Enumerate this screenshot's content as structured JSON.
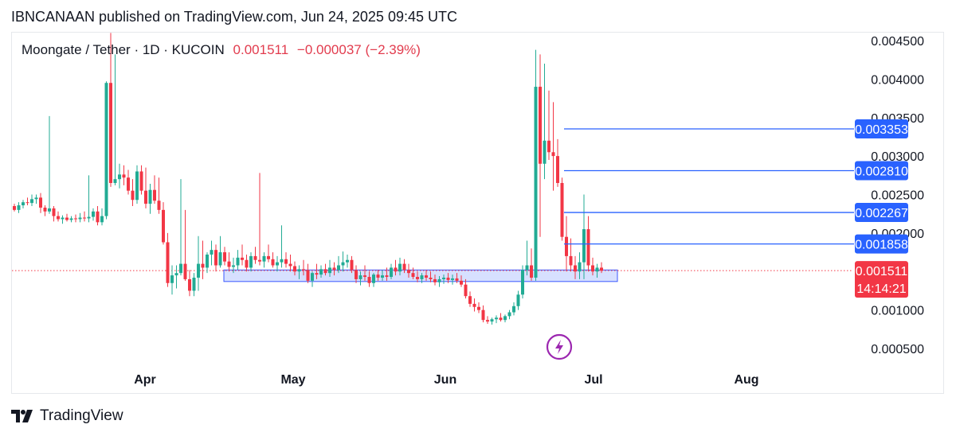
{
  "header": {
    "text": "IBNCANAAN published on TradingView.com, Jun 24, 2025 09:45 UTC"
  },
  "legend": {
    "symbol": "Moongate / Tether · 1D · KUCOIN",
    "price": "0.001511",
    "change": "−0.000037 (−2.39%)"
  },
  "colors": {
    "up": "#22ab94",
    "down": "#f23645",
    "level_line": "#2962ff",
    "badge_blue": "#2962ff",
    "badge_red": "#f23645",
    "zone_fill": "#c9d6ff",
    "zone_border": "#3b57ff",
    "lightning_purple": "#9c27b0"
  },
  "icons": {
    "lightning": "lightning-icon",
    "logo": "tradingview-logo-icon"
  },
  "footer": {
    "brand": "TradingView"
  },
  "chart_data": {
    "type": "candlestick",
    "title": "Moongate / Tether · 1D · KUCOIN",
    "y_axis": {
      "ticks": [
        "0.004500",
        "0.004000",
        "0.003500",
        "0.003000",
        "0.002500",
        "0.002000",
        "0.001000",
        "0.000500"
      ],
      "tick_values": [
        0.0045,
        0.004,
        0.0035,
        0.003,
        0.0025,
        0.002,
        0.001,
        0.0005
      ],
      "range": [
        0.0003,
        0.0047
      ]
    },
    "x_axis": {
      "ticks": [
        "Apr",
        "May",
        "Jun",
        "Jul",
        "Aug"
      ]
    },
    "horizontal_levels": [
      {
        "label": "0.003353",
        "value": 0.003353
      },
      {
        "label": "0.002810",
        "value": 0.00281
      },
      {
        "label": "0.002267",
        "value": 0.002267
      },
      {
        "label": "0.001858",
        "value": 0.001858
      }
    ],
    "current_price": {
      "label": "0.001511",
      "value": 0.001511,
      "countdown": "14:14:21"
    },
    "support_zone": {
      "low": 0.00137,
      "high": 0.00152
    },
    "candles": [
      [
        0.00235,
        0.00238,
        0.00228,
        0.0023
      ],
      [
        0.0023,
        0.0024,
        0.00226,
        0.00236
      ],
      [
        0.00236,
        0.00243,
        0.00232,
        0.0024
      ],
      [
        0.0024,
        0.00246,
        0.00236,
        0.00239
      ],
      [
        0.00239,
        0.0025,
        0.00235,
        0.00244
      ],
      [
        0.00244,
        0.0025,
        0.00238,
        0.00246
      ],
      [
        0.00246,
        0.00252,
        0.00226,
        0.00233
      ],
      [
        0.00233,
        0.00236,
        0.00222,
        0.00228
      ],
      [
        0.00228,
        0.00352,
        0.00225,
        0.00232
      ],
      [
        0.00232,
        0.00235,
        0.00215,
        0.00222
      ],
      [
        0.00222,
        0.00228,
        0.00215,
        0.00218
      ],
      [
        0.00218,
        0.00223,
        0.00212,
        0.0022
      ],
      [
        0.0022,
        0.00225,
        0.00215,
        0.00217
      ],
      [
        0.00217,
        0.00222,
        0.00214,
        0.00219
      ],
      [
        0.00219,
        0.00224,
        0.00214,
        0.00218
      ],
      [
        0.00218,
        0.00226,
        0.00214,
        0.0022
      ],
      [
        0.0022,
        0.00228,
        0.00215,
        0.00219
      ],
      [
        0.00219,
        0.00275,
        0.00214,
        0.00221
      ],
      [
        0.00221,
        0.00232,
        0.00216,
        0.00228
      ],
      [
        0.00228,
        0.00235,
        0.0021,
        0.00214
      ],
      [
        0.00214,
        0.00232,
        0.0021,
        0.00222
      ],
      [
        0.00222,
        0.00397,
        0.00218,
        0.00395
      ],
      [
        0.00395,
        0.0046,
        0.0026,
        0.00265
      ],
      [
        0.00265,
        0.00432,
        0.00262,
        0.0027
      ],
      [
        0.0027,
        0.0029,
        0.00258,
        0.00276
      ],
      [
        0.00276,
        0.00288,
        0.00262,
        0.00272
      ],
      [
        0.00272,
        0.00282,
        0.0025,
        0.00255
      ],
      [
        0.00255,
        0.0027,
        0.00235,
        0.00243
      ],
      [
        0.00243,
        0.00288,
        0.00238,
        0.0028
      ],
      [
        0.0028,
        0.00288,
        0.0025,
        0.00255
      ],
      [
        0.00255,
        0.00285,
        0.00232,
        0.00238
      ],
      [
        0.00238,
        0.00264,
        0.00225,
        0.00256
      ],
      [
        0.00256,
        0.00275,
        0.00238,
        0.00242
      ],
      [
        0.00242,
        0.00272,
        0.00225,
        0.0023
      ],
      [
        0.0023,
        0.0024,
        0.00185,
        0.00188
      ],
      [
        0.00188,
        0.002,
        0.0013,
        0.00135
      ],
      [
        0.00135,
        0.00158,
        0.0012,
        0.00145
      ],
      [
        0.00145,
        0.00158,
        0.00128,
        0.00148
      ],
      [
        0.00148,
        0.0027,
        0.00145,
        0.0016
      ],
      [
        0.0016,
        0.0023,
        0.00138,
        0.0014
      ],
      [
        0.0014,
        0.00152,
        0.00118,
        0.00125
      ],
      [
        0.00125,
        0.00148,
        0.00118,
        0.00142
      ],
      [
        0.00142,
        0.00196,
        0.00125,
        0.0016
      ],
      [
        0.0016,
        0.0019,
        0.0014,
        0.00155
      ],
      [
        0.00155,
        0.00175,
        0.00148,
        0.00172
      ],
      [
        0.00172,
        0.0019,
        0.00158,
        0.00178
      ],
      [
        0.00178,
        0.00185,
        0.0015,
        0.00158
      ],
      [
        0.00158,
        0.00196,
        0.00155,
        0.00175
      ],
      [
        0.00175,
        0.00182,
        0.00158,
        0.00163
      ],
      [
        0.00163,
        0.00175,
        0.0015,
        0.00156
      ],
      [
        0.00156,
        0.00168,
        0.00148,
        0.00158
      ],
      [
        0.00158,
        0.00178,
        0.00152,
        0.00168
      ],
      [
        0.00168,
        0.00185,
        0.00158,
        0.00165
      ],
      [
        0.00165,
        0.00172,
        0.0015,
        0.00155
      ],
      [
        0.00155,
        0.00175,
        0.0015,
        0.0017
      ],
      [
        0.0017,
        0.00182,
        0.0016,
        0.00165
      ],
      [
        0.00165,
        0.00278,
        0.00158,
        0.00163
      ],
      [
        0.00163,
        0.00175,
        0.00155,
        0.0017
      ],
      [
        0.0017,
        0.00185,
        0.00162,
        0.00166
      ],
      [
        0.00166,
        0.00175,
        0.00155,
        0.00158
      ],
      [
        0.00158,
        0.0017,
        0.0015,
        0.00162
      ],
      [
        0.00162,
        0.0021,
        0.00155,
        0.00166
      ],
      [
        0.00166,
        0.00175,
        0.00155,
        0.0016
      ],
      [
        0.0016,
        0.00172,
        0.0015,
        0.00157
      ],
      [
        0.00157,
        0.00163,
        0.00145,
        0.0015
      ],
      [
        0.0015,
        0.00158,
        0.0014,
        0.00153
      ],
      [
        0.00153,
        0.00165,
        0.00145,
        0.00152
      ],
      [
        0.00152,
        0.0016,
        0.00135,
        0.00138
      ],
      [
        0.00138,
        0.0015,
        0.0013,
        0.00148
      ],
      [
        0.00148,
        0.0016,
        0.0014,
        0.00146
      ],
      [
        0.00146,
        0.00158,
        0.00142,
        0.00153
      ],
      [
        0.00153,
        0.0016,
        0.00145,
        0.00148
      ],
      [
        0.00148,
        0.00165,
        0.00143,
        0.00155
      ],
      [
        0.00155,
        0.00162,
        0.00145,
        0.00152
      ],
      [
        0.00152,
        0.0017,
        0.00148,
        0.00158
      ],
      [
        0.00158,
        0.00176,
        0.0015,
        0.00162
      ],
      [
        0.00162,
        0.00172,
        0.00155,
        0.00165
      ],
      [
        0.00165,
        0.0017,
        0.00148,
        0.00152
      ],
      [
        0.00152,
        0.00158,
        0.00135,
        0.0014
      ],
      [
        0.0014,
        0.0015,
        0.00132,
        0.00145
      ],
      [
        0.00145,
        0.00158,
        0.00138,
        0.00143
      ],
      [
        0.00143,
        0.0015,
        0.0013,
        0.00135
      ],
      [
        0.00135,
        0.00148,
        0.0013,
        0.00146
      ],
      [
        0.00146,
        0.00152,
        0.00138,
        0.00142
      ],
      [
        0.00142,
        0.00152,
        0.00138,
        0.00145
      ],
      [
        0.00145,
        0.00155,
        0.00138,
        0.00143
      ],
      [
        0.00143,
        0.0016,
        0.0014,
        0.00155
      ],
      [
        0.00155,
        0.00165,
        0.00145,
        0.0015
      ],
      [
        0.0015,
        0.00168,
        0.00145,
        0.0016
      ],
      [
        0.0016,
        0.00166,
        0.00148,
        0.00152
      ],
      [
        0.00152,
        0.0016,
        0.00142,
        0.00148
      ],
      [
        0.00148,
        0.00155,
        0.0014,
        0.00143
      ],
      [
        0.00143,
        0.0015,
        0.00136,
        0.0014
      ],
      [
        0.0014,
        0.00148,
        0.00135,
        0.00145
      ],
      [
        0.00145,
        0.00152,
        0.00138,
        0.00142
      ],
      [
        0.00142,
        0.0015,
        0.00136,
        0.0014
      ],
      [
        0.0014,
        0.00146,
        0.00132,
        0.00136
      ],
      [
        0.00136,
        0.00144,
        0.0013,
        0.0014
      ],
      [
        0.0014,
        0.00146,
        0.00134,
        0.00142
      ],
      [
        0.00142,
        0.00148,
        0.00135,
        0.00139
      ],
      [
        0.00139,
        0.00146,
        0.00133,
        0.00141
      ],
      [
        0.00141,
        0.00148,
        0.00135,
        0.00138
      ],
      [
        0.00138,
        0.00145,
        0.0013,
        0.00133
      ],
      [
        0.00133,
        0.0014,
        0.00115,
        0.00118
      ],
      [
        0.00118,
        0.00124,
        0.00104,
        0.00108
      ],
      [
        0.00108,
        0.00115,
        0.00098,
        0.00104
      ],
      [
        0.00104,
        0.0011,
        0.00096,
        0.001
      ],
      [
        0.001,
        0.00106,
        0.00084,
        0.00087
      ],
      [
        0.00087,
        0.00092,
        0.00082,
        0.00085
      ],
      [
        0.00085,
        0.0009,
        0.00081,
        0.00088
      ],
      [
        0.00088,
        0.00093,
        0.00083,
        0.0009
      ],
      [
        0.0009,
        0.00096,
        0.00085,
        0.00087
      ],
      [
        0.00087,
        0.00094,
        0.00084,
        0.00092
      ],
      [
        0.00092,
        0.001,
        0.00088,
        0.00097
      ],
      [
        0.00097,
        0.0011,
        0.00093,
        0.00105
      ],
      [
        0.00105,
        0.00125,
        0.001,
        0.0012
      ],
      [
        0.0012,
        0.00158,
        0.00115,
        0.00152
      ],
      [
        0.00152,
        0.0019,
        0.00145,
        0.00158
      ],
      [
        0.00158,
        0.0018,
        0.00138,
        0.00142
      ],
      [
        0.00142,
        0.00438,
        0.00138,
        0.0039
      ],
      [
        0.0039,
        0.00432,
        0.00195,
        0.0029
      ],
      [
        0.0029,
        0.0042,
        0.0027,
        0.0032
      ],
      [
        0.0032,
        0.00385,
        0.00295,
        0.00305
      ],
      [
        0.00305,
        0.0037,
        0.00255,
        0.003
      ],
      [
        0.003,
        0.00322,
        0.0026,
        0.00265
      ],
      [
        0.00265,
        0.00272,
        0.0019,
        0.00195
      ],
      [
        0.00195,
        0.00222,
        0.0015,
        0.0017
      ],
      [
        0.0017,
        0.00193,
        0.0015,
        0.00158
      ],
      [
        0.00158,
        0.0017,
        0.0014,
        0.0015
      ],
      [
        0.0015,
        0.00175,
        0.0014,
        0.00162
      ],
      [
        0.00162,
        0.0025,
        0.0014,
        0.00205
      ],
      [
        0.00205,
        0.00222,
        0.0015,
        0.00158
      ],
      [
        0.00158,
        0.00168,
        0.00145,
        0.0015
      ],
      [
        0.0015,
        0.0016,
        0.00142,
        0.00155
      ],
      [
        0.00155,
        0.00162,
        0.00148,
        0.00151
      ]
    ]
  }
}
